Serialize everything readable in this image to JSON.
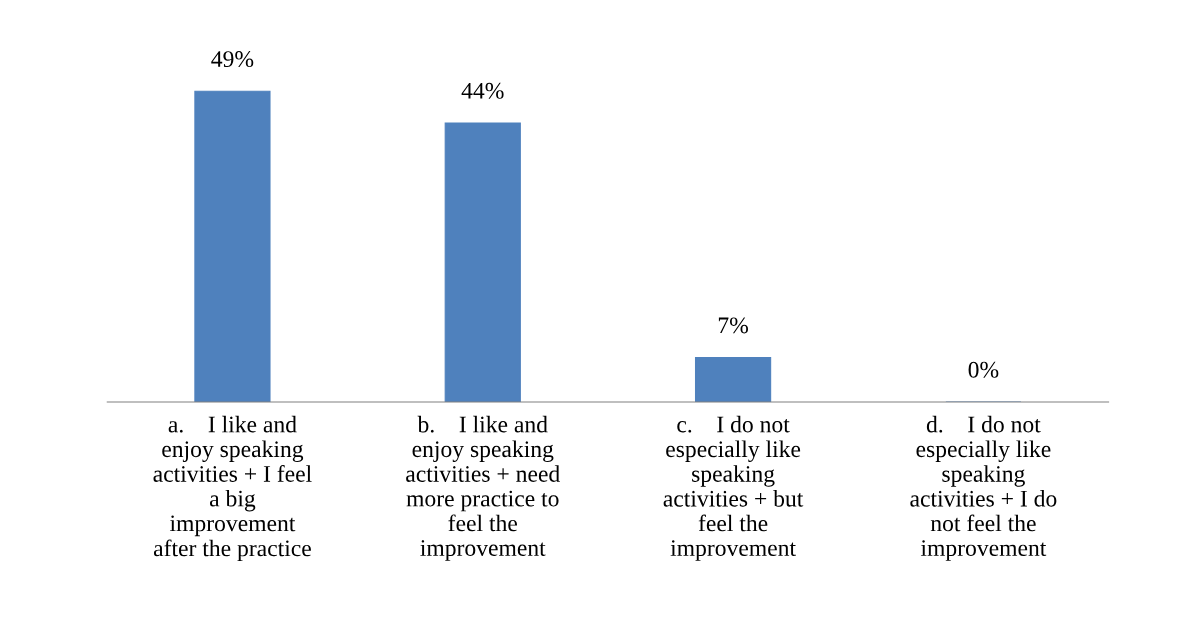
{
  "chart_data": {
    "type": "bar",
    "categories": [
      "a.    I like and\nenjoy speaking\nactivities + I feel\na big\nimprovement\nafter the practice",
      "b.    I like and\nenjoy speaking\nactivities + need\nmore practice to\nfeel the\nimprovement",
      "c.    I do not\nespecially like\nspeaking\nactivities + but\nfeel the\nimprovement",
      "d.    I do not\nespecially like\nspeaking\nactivities + I do\nnot feel the\nimprovement"
    ],
    "values": [
      49,
      44,
      7,
      0
    ],
    "value_labels": [
      "49%",
      "44%",
      "7%",
      "0%"
    ],
    "color": "#4f81bd",
    "grid": false,
    "legend": false
  }
}
